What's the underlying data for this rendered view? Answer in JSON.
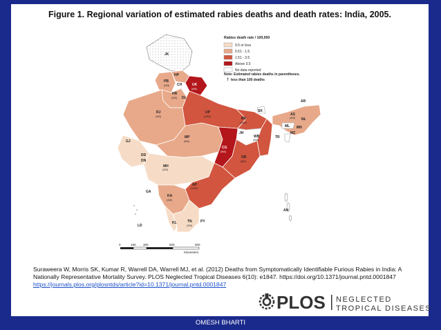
{
  "title": "Figure 1. Regional variation of estimated rabies deaths and death rates: India, 2005.",
  "legend": {
    "heading": "Rabies death rate / 100,000",
    "items": [
      {
        "label": "0.5 or less",
        "color": "#f6dcc6"
      },
      {
        "label": "0.51 - 1.5",
        "color": "#e8a98a"
      },
      {
        "label": "1.51 - 3.5",
        "color": "#d2553f"
      },
      {
        "label": "Above 3.5",
        "color": "#b3161b"
      },
      {
        "label": "No data reported",
        "color": "#ffffff"
      }
    ],
    "note1": "Note: Estimated rabies deaths in parentheses.",
    "note2": "less than 100 deaths",
    "dagger": "†"
  },
  "regions": {
    "jk": "JK",
    "hp": "HP",
    "pb": "PB",
    "pb_d": "(300)",
    "ch": "CH",
    "uk": "UK",
    "uk_d": "(400)",
    "hr": "HR",
    "hr_d": "(200)",
    "dl": "DL",
    "rj": "RJ",
    "rj_d": "(400)",
    "up": "UP",
    "up_d": "(4300)",
    "br": "BR",
    "br_d": "(1600)",
    "sk": "SK",
    "ar": "AR",
    "as": "AS",
    "as_d": "(400)",
    "nl": "NL",
    "ml": "ML",
    "mn": "MN",
    "mz": "MZ",
    "tr": "TR",
    "jh": "JH",
    "wb": "WB",
    "wb_d": "(900)",
    "gj": "GJ",
    "mp": "MP",
    "mp_d": "(900)",
    "cg": "CG",
    "cg_d": "(900)",
    "or": "OR",
    "or_d": "(800)",
    "dd": "DD",
    "dn": "DN",
    "mh": "MH",
    "mh_d": "(200)",
    "ap": "AP",
    "ap_d": "(1300)",
    "ga": "GA",
    "ka": "KA",
    "ka_d": "(400)",
    "kl": "KL",
    "tn": "TN",
    "tn_d": "(200)",
    "py": "PY",
    "ld": "LD",
    "an": "AN"
  },
  "scale": {
    "ticks": [
      "0",
      "150",
      "300",
      "600",
      "900"
    ],
    "unit": "Kilometers"
  },
  "citation": {
    "text": "Suraweera W, Morris SK, Kumar R, Warrell DA, Warrell MJ, et al. (2012) Deaths from Symptomatically Identifiable Furious Rabies in India: A Nationally Representative Mortality Survey. PLOS Neglected Tropical Diseases 6(10): e1847. https://doi.org/10.1371/journal.pntd.0001847",
    "link": "https://journals.plos.org/plosntds/article?id=10.1371/journal.pntd.0001847"
  },
  "logo": {
    "word": "PLOS",
    "line1": "NEGLECTED",
    "line2": "TROPICAL DISEASES"
  },
  "footer": "OMESH BHARTI"
}
